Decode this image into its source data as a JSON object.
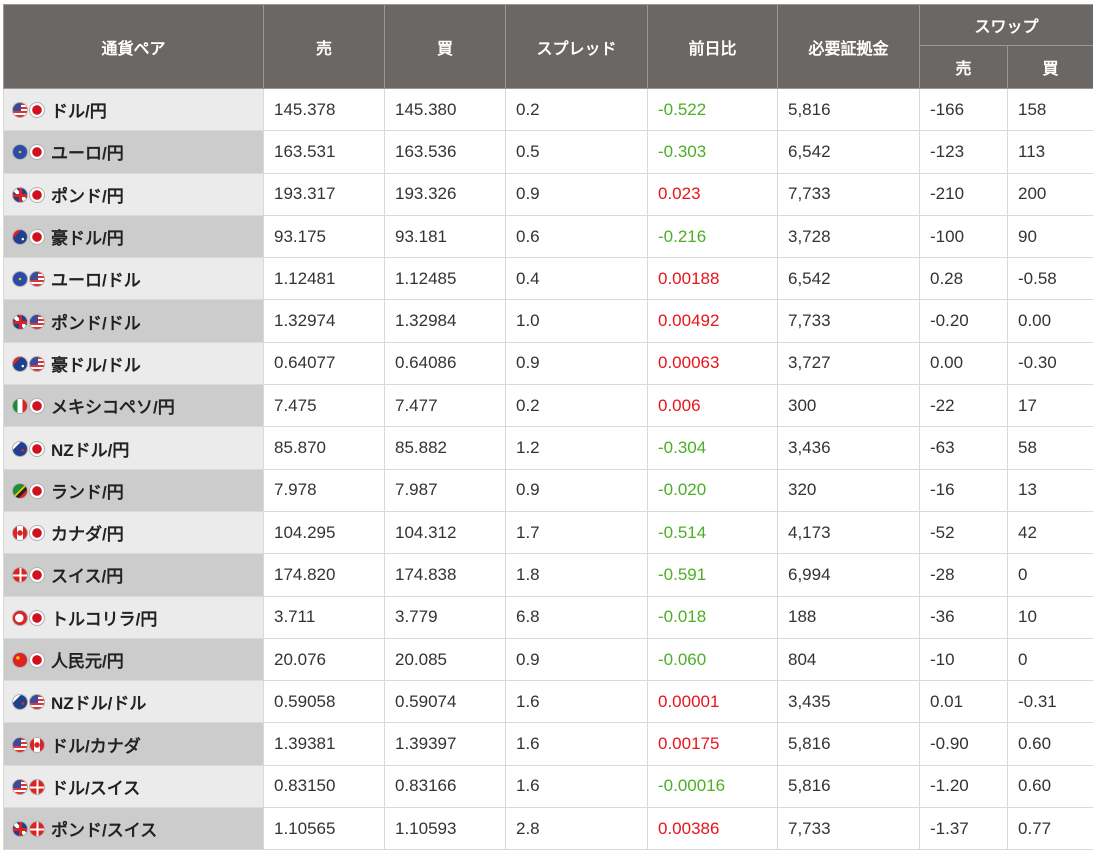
{
  "header": {
    "pair": "通貨ペア",
    "sell": "売",
    "buy": "買",
    "spread": "スプレッド",
    "change": "前日比",
    "margin": "必要証拠金",
    "swap": "スワップ",
    "swap_sell": "売",
    "swap_buy": "買"
  },
  "colors": {
    "header_bg": "#6a6765",
    "down": "#4caf24",
    "up": "#e8141c"
  },
  "rows": [
    {
      "flags": [
        "usd",
        "jpy"
      ],
      "pair": "ドル/円",
      "sell": "145.378",
      "buy": "145.380",
      "spread": "0.2",
      "change": "-0.522",
      "dir": "down",
      "margin": "5,816",
      "swap_sell": "-166",
      "swap_buy": "158"
    },
    {
      "flags": [
        "eur",
        "jpy"
      ],
      "pair": "ユーロ/円",
      "sell": "163.531",
      "buy": "163.536",
      "spread": "0.5",
      "change": "-0.303",
      "dir": "down",
      "margin": "6,542",
      "swap_sell": "-123",
      "swap_buy": "113"
    },
    {
      "flags": [
        "gbp",
        "jpy"
      ],
      "pair": "ポンド/円",
      "sell": "193.317",
      "buy": "193.326",
      "spread": "0.9",
      "change": "0.023",
      "dir": "up",
      "margin": "7,733",
      "swap_sell": "-210",
      "swap_buy": "200"
    },
    {
      "flags": [
        "aud",
        "jpy"
      ],
      "pair": "豪ドル/円",
      "sell": "93.175",
      "buy": "93.181",
      "spread": "0.6",
      "change": "-0.216",
      "dir": "down",
      "margin": "3,728",
      "swap_sell": "-100",
      "swap_buy": "90"
    },
    {
      "flags": [
        "eur",
        "usd"
      ],
      "pair": "ユーロ/ドル",
      "sell": "1.12481",
      "buy": "1.12485",
      "spread": "0.4",
      "change": "0.00188",
      "dir": "up",
      "margin": "6,542",
      "swap_sell": "0.28",
      "swap_buy": "-0.58"
    },
    {
      "flags": [
        "gbp",
        "usd"
      ],
      "pair": "ポンド/ドル",
      "sell": "1.32974",
      "buy": "1.32984",
      "spread": "1.0",
      "change": "0.00492",
      "dir": "up",
      "margin": "7,733",
      "swap_sell": "-0.20",
      "swap_buy": "0.00"
    },
    {
      "flags": [
        "aud",
        "usd"
      ],
      "pair": "豪ドル/ドル",
      "sell": "0.64077",
      "buy": "0.64086",
      "spread": "0.9",
      "change": "0.00063",
      "dir": "up",
      "margin": "3,727",
      "swap_sell": "0.00",
      "swap_buy": "-0.30"
    },
    {
      "flags": [
        "mxn",
        "jpy"
      ],
      "pair": "メキシコペソ/円",
      "sell": "7.475",
      "buy": "7.477",
      "spread": "0.2",
      "change": "0.006",
      "dir": "up",
      "margin": "300",
      "swap_sell": "-22",
      "swap_buy": "17"
    },
    {
      "flags": [
        "nzd",
        "jpy"
      ],
      "pair": "NZドル/円",
      "sell": "85.870",
      "buy": "85.882",
      "spread": "1.2",
      "change": "-0.304",
      "dir": "down",
      "margin": "3,436",
      "swap_sell": "-63",
      "swap_buy": "58"
    },
    {
      "flags": [
        "zar",
        "jpy"
      ],
      "pair": "ランド/円",
      "sell": "7.978",
      "buy": "7.987",
      "spread": "0.9",
      "change": "-0.020",
      "dir": "down",
      "margin": "320",
      "swap_sell": "-16",
      "swap_buy": "13"
    },
    {
      "flags": [
        "cad",
        "jpy"
      ],
      "pair": "カナダ/円",
      "sell": "104.295",
      "buy": "104.312",
      "spread": "1.7",
      "change": "-0.514",
      "dir": "down",
      "margin": "4,173",
      "swap_sell": "-52",
      "swap_buy": "42"
    },
    {
      "flags": [
        "chf",
        "jpy"
      ],
      "pair": "スイス/円",
      "sell": "174.820",
      "buy": "174.838",
      "spread": "1.8",
      "change": "-0.591",
      "dir": "down",
      "margin": "6,994",
      "swap_sell": "-28",
      "swap_buy": "0"
    },
    {
      "flags": [
        "try",
        "jpy"
      ],
      "pair": "トルコリラ/円",
      "sell": "3.711",
      "buy": "3.779",
      "spread": "6.8",
      "change": "-0.018",
      "dir": "down",
      "margin": "188",
      "swap_sell": "-36",
      "swap_buy": "10"
    },
    {
      "flags": [
        "cny",
        "jpy"
      ],
      "pair": "人民元/円",
      "sell": "20.076",
      "buy": "20.085",
      "spread": "0.9",
      "change": "-0.060",
      "dir": "down",
      "margin": "804",
      "swap_sell": "-10",
      "swap_buy": "0"
    },
    {
      "flags": [
        "nzd",
        "usd"
      ],
      "pair": "NZドル/ドル",
      "sell": "0.59058",
      "buy": "0.59074",
      "spread": "1.6",
      "change": "0.00001",
      "dir": "up",
      "margin": "3,435",
      "swap_sell": "0.01",
      "swap_buy": "-0.31"
    },
    {
      "flags": [
        "usd",
        "cad"
      ],
      "pair": "ドル/カナダ",
      "sell": "1.39381",
      "buy": "1.39397",
      "spread": "1.6",
      "change": "0.00175",
      "dir": "up",
      "margin": "5,816",
      "swap_sell": "-0.90",
      "swap_buy": "0.60"
    },
    {
      "flags": [
        "usd",
        "chf"
      ],
      "pair": "ドル/スイス",
      "sell": "0.83150",
      "buy": "0.83166",
      "spread": "1.6",
      "change": "-0.00016",
      "dir": "down",
      "margin": "5,816",
      "swap_sell": "-1.20",
      "swap_buy": "0.60"
    },
    {
      "flags": [
        "gbp",
        "chf"
      ],
      "pair": "ポンド/スイス",
      "sell": "1.10565",
      "buy": "1.10593",
      "spread": "2.8",
      "change": "0.00386",
      "dir": "up",
      "margin": "7,733",
      "swap_sell": "-1.37",
      "swap_buy": "0.77"
    }
  ]
}
